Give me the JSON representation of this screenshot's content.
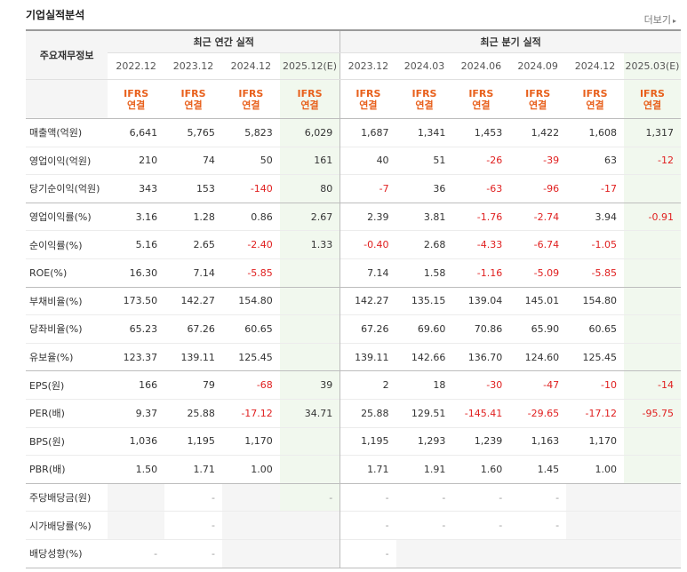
{
  "header": {
    "title": "기업실적분석",
    "more_label": "더보기",
    "more_icon": "chevron-right-icon"
  },
  "table": {
    "row_header": "주요재무정보",
    "group_annual": "최근 연간 실적",
    "group_quarter": "최근 분기 실적",
    "periods": [
      "2022.12",
      "2023.12",
      "2024.12",
      "2025.12(E)",
      "2023.12",
      "2024.03",
      "2024.06",
      "2024.09",
      "2024.12",
      "2025.03(E)"
    ],
    "ifrs_top": "IFRS",
    "ifrs_bottom": "연결",
    "rows": [
      {
        "label": "매출액(억원)",
        "values": [
          "6,641",
          "5,765",
          "5,823",
          "6,029",
          "1,687",
          "1,341",
          "1,453",
          "1,422",
          "1,608",
          "1,317"
        ]
      },
      {
        "label": "영업이익(억원)",
        "values": [
          "210",
          "74",
          "50",
          "161",
          "40",
          "51",
          "-26",
          "-39",
          "63",
          "-12"
        ]
      },
      {
        "label": "당기순이익(억원)",
        "values": [
          "343",
          "153",
          "-140",
          "80",
          "-7",
          "36",
          "-63",
          "-96",
          "-17",
          ""
        ]
      },
      {
        "label": "영업이익률(%)",
        "values": [
          "3.16",
          "1.28",
          "0.86",
          "2.67",
          "2.39",
          "3.81",
          "-1.76",
          "-2.74",
          "3.94",
          "-0.91"
        ]
      },
      {
        "label": "순이익률(%)",
        "values": [
          "5.16",
          "2.65",
          "-2.40",
          "1.33",
          "-0.40",
          "2.68",
          "-4.33",
          "-6.74",
          "-1.05",
          ""
        ]
      },
      {
        "label": "ROE(%)",
        "values": [
          "16.30",
          "7.14",
          "-5.85",
          "",
          "7.14",
          "1.58",
          "-1.16",
          "-5.09",
          "-5.85",
          ""
        ]
      },
      {
        "label": "부채비율(%)",
        "values": [
          "173.50",
          "142.27",
          "154.80",
          "",
          "142.27",
          "135.15",
          "139.04",
          "145.01",
          "154.80",
          ""
        ]
      },
      {
        "label": "당좌비율(%)",
        "values": [
          "65.23",
          "67.26",
          "60.65",
          "",
          "67.26",
          "69.60",
          "70.86",
          "65.90",
          "60.65",
          ""
        ]
      },
      {
        "label": "유보율(%)",
        "values": [
          "123.37",
          "139.11",
          "125.45",
          "",
          "139.11",
          "142.66",
          "136.70",
          "124.60",
          "125.45",
          ""
        ]
      },
      {
        "label": "EPS(원)",
        "values": [
          "166",
          "79",
          "-68",
          "39",
          "2",
          "18",
          "-30",
          "-47",
          "-10",
          "-14"
        ]
      },
      {
        "label": "PER(배)",
        "values": [
          "9.37",
          "25.88",
          "-17.12",
          "34.71",
          "25.88",
          "129.51",
          "-145.41",
          "-29.65",
          "-17.12",
          "-95.75"
        ]
      },
      {
        "label": "BPS(원)",
        "values": [
          "1,036",
          "1,195",
          "1,170",
          "",
          "1,195",
          "1,293",
          "1,239",
          "1,163",
          "1,170",
          ""
        ]
      },
      {
        "label": "PBR(배)",
        "values": [
          "1.50",
          "1.71",
          "1.00",
          "",
          "1.71",
          "1.91",
          "1.60",
          "1.45",
          "1.00",
          ""
        ]
      },
      {
        "label": "주당배당금(원)",
        "values": [
          "",
          "-",
          "",
          "-",
          "-",
          "-",
          "-",
          "-",
          "",
          ""
        ]
      },
      {
        "label": "시가배당률(%)",
        "values": [
          "",
          "-",
          "",
          "",
          "-",
          "-",
          "-",
          "-",
          "",
          ""
        ]
      },
      {
        "label": "배당성향(%)",
        "values": [
          "-",
          "-",
          "",
          "",
          "-",
          "",
          "",
          "",
          "",
          ""
        ]
      }
    ]
  }
}
